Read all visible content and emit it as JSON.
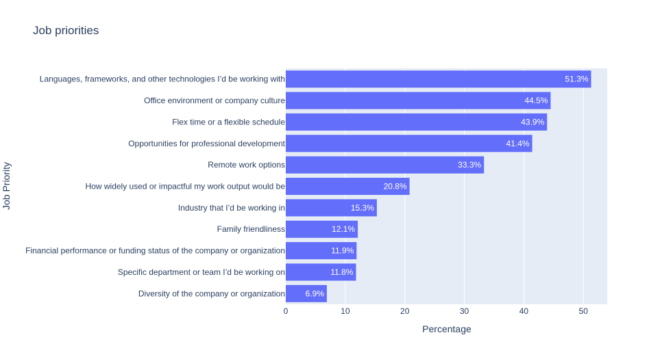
{
  "chart_data": {
    "type": "bar",
    "orientation": "horizontal",
    "title": "Job priorities",
    "xlabel": "Percentage",
    "ylabel": "Job Priority",
    "xlim": [
      0,
      54
    ],
    "xticks": [
      0,
      10,
      20,
      30,
      40,
      50
    ],
    "grid": true,
    "bar_color": "#636efa",
    "plot_bg": "#e5ecf6",
    "categories": [
      "Languages, frameworks, and other technologies I’d be working with",
      "Office environment or company culture",
      "Flex time or a flexible schedule",
      "Opportunities for professional development",
      "Remote work options",
      "How widely used or impactful my work output would be",
      "Industry that I’d be working in",
      "Family friendliness",
      "Financial performance or funding status of the company or organization",
      "Specific department or team I’d be working on",
      "Diversity of the company or organization"
    ],
    "values": [
      51.3,
      44.5,
      43.9,
      41.4,
      33.3,
      20.8,
      15.3,
      12.1,
      11.9,
      11.8,
      6.9
    ],
    "value_labels": [
      "51.3%",
      "44.5%",
      "43.9%",
      "41.4%",
      "33.3%",
      "20.8%",
      "15.3%",
      "12.1%",
      "11.9%",
      "11.8%",
      "6.9%"
    ]
  }
}
